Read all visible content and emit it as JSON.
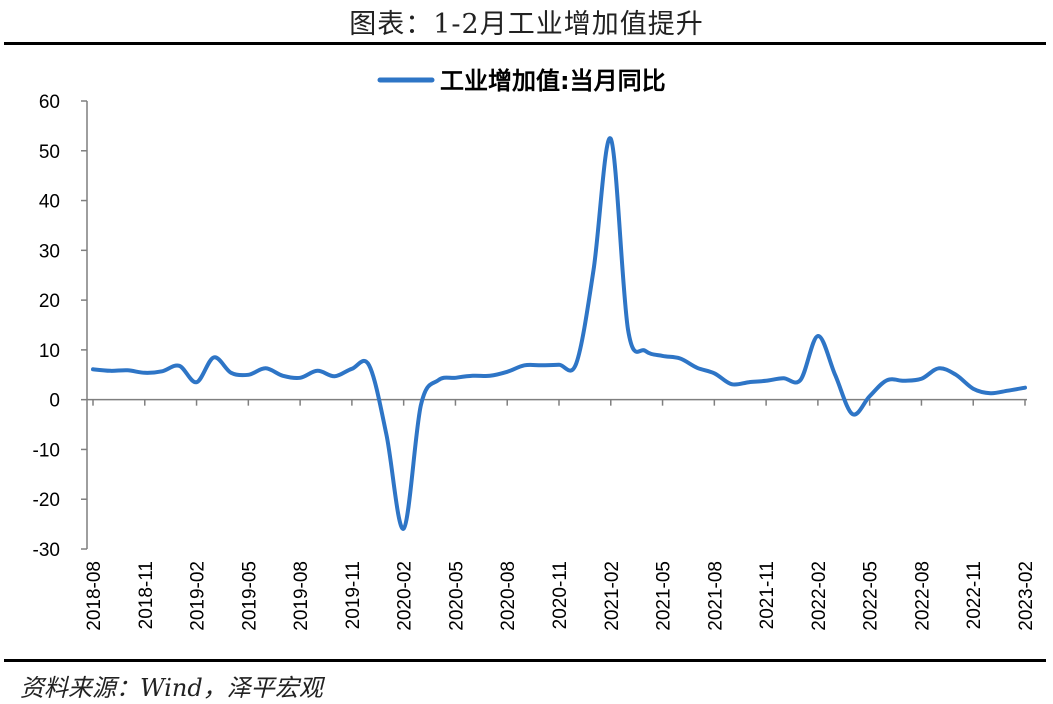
{
  "title": "图表：1-2月工业增加值提升",
  "source": "资料来源：Wind，泽平宏观",
  "chart_data": {
    "type": "line",
    "colors": {
      "line": "#2e75c6",
      "axis": "#7f7f7f"
    },
    "legend": "top-center",
    "grid": false,
    "ylim": [
      -30,
      60
    ],
    "yticks": [
      60,
      50,
      40,
      30,
      20,
      10,
      0,
      -10,
      -20,
      -30
    ],
    "xtick_labels": [
      "2018-08",
      "2018-11",
      "2019-02",
      "2019-05",
      "2019-08",
      "2019-11",
      "2020-02",
      "2020-05",
      "2020-08",
      "2020-11",
      "2021-02",
      "2021-05",
      "2021-08",
      "2021-11",
      "2022-02",
      "2022-05",
      "2022-08",
      "2022-11",
      "2023-02"
    ],
    "series": [
      {
        "name": "工业增加值:当月同比",
        "x": [
          "2018-08",
          "2018-09",
          "2018-10",
          "2018-11",
          "2018-12",
          "2019-01",
          "2019-02",
          "2019-03",
          "2019-04",
          "2019-05",
          "2019-06",
          "2019-07",
          "2019-08",
          "2019-09",
          "2019-10",
          "2019-11",
          "2019-12",
          "2020-01",
          "2020-02",
          "2020-03",
          "2020-04",
          "2020-05",
          "2020-06",
          "2020-07",
          "2020-08",
          "2020-09",
          "2020-10",
          "2020-11",
          "2020-12",
          "2021-01",
          "2021-02",
          "2021-03",
          "2021-04",
          "2021-05",
          "2021-06",
          "2021-07",
          "2021-08",
          "2021-09",
          "2021-10",
          "2021-11",
          "2021-12",
          "2022-01",
          "2022-02",
          "2022-03",
          "2022-04",
          "2022-05",
          "2022-06",
          "2022-07",
          "2022-08",
          "2022-09",
          "2022-10",
          "2022-11",
          "2022-12",
          "2023-01",
          "2023-02"
        ],
        "values": [
          6.1,
          5.8,
          5.9,
          5.4,
          5.7,
          6.8,
          3.5,
          8.5,
          5.4,
          5.0,
          6.3,
          4.8,
          4.4,
          5.8,
          4.7,
          6.2,
          6.9,
          -7.0,
          -25.9,
          -1.1,
          3.9,
          4.4,
          4.8,
          4.8,
          5.6,
          6.9,
          6.9,
          7.0,
          7.3,
          26.0,
          52.4,
          14.1,
          9.8,
          8.8,
          8.3,
          6.4,
          5.3,
          3.1,
          3.5,
          3.8,
          4.3,
          4.0,
          12.8,
          5.0,
          -2.9,
          0.7,
          3.9,
          3.8,
          4.2,
          6.3,
          5.0,
          2.2,
          1.3,
          1.8,
          2.4
        ]
      }
    ]
  }
}
